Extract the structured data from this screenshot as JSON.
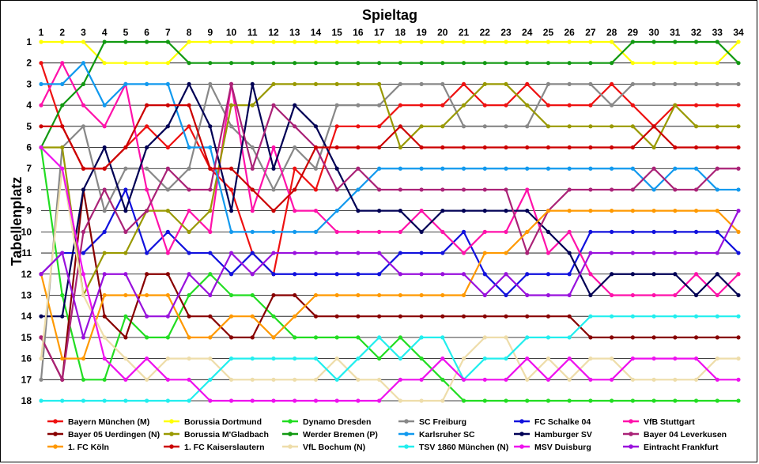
{
  "chart_data": {
    "type": "line",
    "title": "Spieltag",
    "xlabel": "Spieltag",
    "ylabel": "Tabellenplatz",
    "x": [
      1,
      2,
      3,
      4,
      5,
      6,
      7,
      8,
      9,
      10,
      11,
      12,
      13,
      14,
      15,
      16,
      17,
      18,
      19,
      20,
      21,
      22,
      23,
      24,
      25,
      26,
      27,
      28,
      29,
      30,
      31,
      32,
      33,
      34
    ],
    "ytick_labels": [
      "1",
      "2",
      "3",
      "4",
      "5",
      "6",
      "7",
      "8",
      "9",
      "10",
      "11",
      "12",
      "13",
      "14",
      "15",
      "16",
      "17",
      "18"
    ],
    "xlim": [
      1,
      34
    ],
    "ylim": [
      18,
      1
    ],
    "y_inverted": true,
    "grid": true,
    "legend_position": "bottom",
    "series": [
      {
        "name": "Bayern München (M)",
        "color": "#ee1111",
        "values": [
          2,
          5,
          7,
          7,
          6,
          5,
          6,
          5,
          7,
          8,
          11,
          12,
          7,
          8,
          5,
          5,
          5,
          4,
          4,
          4,
          3,
          4,
          4,
          3,
          4,
          4,
          4,
          3,
          4,
          5,
          4,
          4,
          4,
          4
        ]
      },
      {
        "name": "Borussia Dortmund",
        "color": "#ffff00",
        "values": [
          1,
          1,
          1,
          2,
          2,
          2,
          2,
          1,
          1,
          1,
          1,
          1,
          1,
          1,
          1,
          1,
          1,
          1,
          1,
          1,
          1,
          1,
          1,
          1,
          1,
          1,
          1,
          1,
          2,
          2,
          2,
          2,
          2,
          1
        ]
      },
      {
        "name": "Dynamo Dresden",
        "color": "#22dd22",
        "values": [
          6,
          13,
          17,
          17,
          14,
          15,
          15,
          13,
          12,
          13,
          13,
          14,
          15,
          15,
          15,
          15,
          16,
          15,
          16,
          17,
          18,
          18,
          18,
          18,
          18,
          18,
          18,
          18,
          18,
          18,
          18,
          18,
          18,
          18
        ]
      },
      {
        "name": "SC Freiburg",
        "color": "#888888",
        "values": [
          17,
          6,
          5,
          9,
          7,
          7,
          8,
          7,
          3,
          5,
          6,
          8,
          6,
          7,
          4,
          4,
          4,
          3,
          3,
          3,
          5,
          5,
          5,
          5,
          3,
          3,
          3,
          4,
          3,
          3,
          3,
          3,
          3,
          3
        ]
      },
      {
        "name": "FC Schalke 04",
        "color": "#1111dd",
        "values": [
          12,
          11,
          11,
          10,
          8,
          11,
          10,
          11,
          11,
          12,
          11,
          12,
          12,
          12,
          12,
          12,
          12,
          11,
          11,
          11,
          10,
          12,
          13,
          12,
          12,
          12,
          10,
          10,
          10,
          10,
          10,
          10,
          10,
          11
        ]
      },
      {
        "name": "VfB Stuttgart",
        "color": "#ff11aa",
        "values": [
          4,
          2,
          4,
          5,
          3,
          8,
          11,
          9,
          10,
          3,
          9,
          6,
          9,
          9,
          10,
          10,
          10,
          10,
          9,
          10,
          11,
          10,
          10,
          8,
          11,
          10,
          12,
          13,
          13,
          13,
          13,
          12,
          13,
          12
        ]
      },
      {
        "name": "Bayer 05 Uerdingen (N)",
        "color": "#880000",
        "values": [
          15,
          17,
          8,
          14,
          15,
          12,
          12,
          14,
          14,
          15,
          15,
          13,
          13,
          14,
          14,
          14,
          14,
          14,
          14,
          14,
          14,
          14,
          14,
          14,
          14,
          14,
          15,
          15,
          15,
          15,
          15,
          15,
          15,
          15
        ]
      },
      {
        "name": "Borussia M'Gladbach",
        "color": "#999900",
        "values": [
          6,
          6,
          13,
          11,
          11,
          9,
          9,
          10,
          9,
          4,
          4,
          3,
          3,
          3,
          3,
          3,
          3,
          6,
          5,
          5,
          4,
          3,
          3,
          4,
          5,
          5,
          5,
          5,
          5,
          6,
          4,
          5,
          5,
          5
        ]
      },
      {
        "name": "Werder Bremen (P)",
        "color": "#119911",
        "values": [
          6,
          4,
          3,
          1,
          1,
          1,
          1,
          2,
          2,
          2,
          2,
          2,
          2,
          2,
          2,
          2,
          2,
          2,
          2,
          2,
          2,
          2,
          2,
          2,
          2,
          2,
          2,
          2,
          1,
          1,
          1,
          1,
          1,
          2
        ]
      },
      {
        "name": "Karlsruher SC",
        "color": "#1199ee",
        "values": [
          3,
          3,
          2,
          4,
          3,
          3,
          3,
          6,
          6,
          10,
          10,
          10,
          10,
          10,
          9,
          8,
          7,
          7,
          7,
          7,
          7,
          7,
          7,
          7,
          7,
          7,
          7,
          7,
          7,
          8,
          7,
          7,
          8,
          8
        ]
      },
      {
        "name": "Hamburger SV",
        "color": "#000055",
        "values": [
          14,
          14,
          8,
          6,
          9,
          6,
          5,
          3,
          5,
          9,
          3,
          7,
          4,
          5,
          7,
          9,
          9,
          9,
          10,
          9,
          9,
          9,
          9,
          9,
          10,
          11,
          13,
          12,
          12,
          12,
          12,
          13,
          12,
          13
        ]
      },
      {
        "name": "Bayer 04 Leverkusen",
        "color": "#aa2277",
        "values": [
          15,
          17,
          10,
          8,
          10,
          9,
          7,
          8,
          8,
          3,
          7,
          4,
          5,
          6,
          8,
          7,
          8,
          8,
          8,
          8,
          8,
          8,
          8,
          11,
          9,
          8,
          8,
          8,
          8,
          7,
          8,
          8,
          7,
          7
        ]
      },
      {
        "name": "1. FC Köln",
        "color": "#ff9900",
        "values": [
          12,
          16,
          16,
          13,
          13,
          13,
          13,
          15,
          15,
          14,
          14,
          15,
          14,
          13,
          13,
          13,
          13,
          13,
          13,
          13,
          13,
          11,
          11,
          10,
          9,
          9,
          9,
          9,
          9,
          9,
          9,
          9,
          9,
          10
        ]
      },
      {
        "name": "1. FC Kaiserslautern",
        "color": "#cc0000",
        "values": [
          5,
          5,
          7,
          7,
          6,
          4,
          4,
          4,
          7,
          7,
          8,
          9,
          8,
          6,
          6,
          6,
          6,
          5,
          6,
          6,
          6,
          6,
          6,
          6,
          6,
          6,
          6,
          6,
          6,
          5,
          6,
          6,
          6,
          6
        ]
      },
      {
        "name": "VfL Bochum (N)",
        "color": "#eeddaa",
        "values": [
          16,
          7,
          13,
          15,
          16,
          17,
          16,
          16,
          16,
          17,
          17,
          17,
          17,
          17,
          16,
          17,
          17,
          18,
          18,
          18,
          16,
          15,
          15,
          17,
          16,
          17,
          16,
          16,
          17,
          17,
          17,
          17,
          16,
          16
        ]
      },
      {
        "name": "TSV 1860 München (N)",
        "color": "#22eeee",
        "values": [
          18,
          18,
          18,
          18,
          18,
          18,
          18,
          18,
          17,
          16,
          16,
          16,
          16,
          16,
          17,
          16,
          15,
          16,
          15,
          15,
          17,
          16,
          16,
          15,
          15,
          15,
          14,
          14,
          14,
          14,
          14,
          14,
          14,
          14
        ]
      },
      {
        "name": "MSV Duisburg",
        "color": "#ee11ee",
        "values": [
          6,
          7,
          12,
          16,
          17,
          16,
          17,
          17,
          18,
          18,
          18,
          18,
          18,
          18,
          18,
          18,
          18,
          17,
          17,
          16,
          17,
          17,
          17,
          16,
          17,
          16,
          17,
          17,
          16,
          16,
          16,
          16,
          17,
          17
        ]
      },
      {
        "name": "Eintracht Frankfurt",
        "color": "#9911dd",
        "values": [
          12,
          11,
          15,
          12,
          12,
          14,
          14,
          12,
          13,
          11,
          12,
          11,
          11,
          11,
          11,
          11,
          11,
          12,
          12,
          12,
          12,
          13,
          12,
          13,
          13,
          13,
          11,
          11,
          11,
          11,
          11,
          11,
          11,
          9
        ]
      }
    ]
  }
}
